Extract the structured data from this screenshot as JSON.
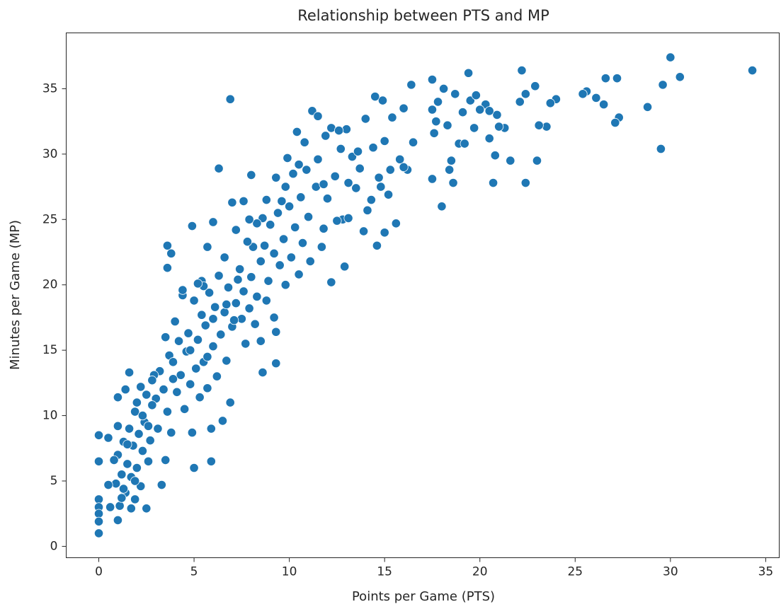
{
  "chart_data": {
    "type": "scatter",
    "title": "Relationship between PTS and MP",
    "x_label": "Points per Game (PTS)",
    "y_label": "Minutes per Game (MP)",
    "color": "#1f77b4",
    "xlim": [
      -1.71,
      35.71
    ],
    "ylim": [
      -0.87,
      39.27
    ],
    "xticks": [
      0,
      5,
      10,
      15,
      20,
      25,
      30,
      35
    ],
    "yticks": [
      0,
      5,
      10,
      15,
      20,
      25,
      30,
      35
    ],
    "grid": false,
    "x": [
      34.3,
      30.5,
      30.0,
      29.6,
      29.5,
      28.8,
      27.3,
      27.1,
      27.2,
      26.6,
      26.5,
      26.1,
      25.6,
      25.4,
      24.0,
      23.7,
      23.5,
      23.1,
      23.0,
      22.9,
      22.4,
      22.2,
      22.1,
      22.4,
      21.6,
      21.3,
      20.9,
      20.8,
      20.7,
      20.5,
      20.3,
      20.0,
      19.7,
      19.5,
      19.4,
      19.1,
      18.9,
      18.7,
      18.5,
      18.3,
      18.1,
      18.0,
      17.8,
      17.7,
      17.6,
      17.5,
      17.5,
      17.5,
      18.4,
      18.6,
      19.8,
      20.5,
      21.0,
      19.2,
      16.4,
      16.5,
      16.2,
      16.0,
      15.8,
      15.6,
      15.4,
      15.2,
      15.0,
      15.0,
      14.9,
      14.7,
      14.6,
      14.5,
      14.4,
      14.3,
      14.1,
      14.0,
      13.9,
      13.7,
      13.5,
      13.3,
      13.1,
      13.0,
      12.9,
      12.8,
      12.7,
      12.5,
      12.4,
      12.2,
      12.2,
      12.0,
      11.9,
      11.8,
      11.7,
      11.5,
      11.4,
      11.2,
      11.1,
      11.0,
      10.9,
      10.8,
      10.7,
      10.6,
      10.5,
      10.4,
      10.3,
      10.2,
      10.1,
      10.0,
      9.9,
      9.8,
      9.7,
      9.6,
      9.5,
      9.4,
      9.3,
      9.2,
      9.0,
      8.9,
      8.8,
      8.7,
      8.6,
      8.5,
      8.3,
      8.1,
      8.0,
      7.9,
      7.8,
      7.6,
      7.4,
      7.2,
      7.0,
      6.9,
      6.6,
      6.3,
      6.0,
      5.7,
      5.4,
      4.9,
      3.6,
      3.8,
      3.6,
      11.5,
      12.6,
      13.6,
      14.8,
      15.3,
      16.0,
      13.1,
      11.8,
      9.8,
      10.5,
      9.3,
      9.2,
      9.3,
      8.8,
      8.6,
      8.5,
      8.3,
      8.2,
      8.0,
      7.9,
      7.7,
      7.6,
      7.5,
      7.3,
      7.2,
      7.0,
      6.9,
      6.8,
      6.7,
      6.6,
      6.5,
      6.4,
      6.3,
      6.2,
      6.1,
      6.0,
      5.9,
      5.9,
      5.8,
      5.7,
      5.6,
      5.5,
      5.4,
      5.3,
      5.2,
      5.1,
      5.0,
      4.9,
      5.0,
      4.8,
      4.7,
      4.6,
      4.5,
      4.4,
      4.3,
      4.2,
      4.1,
      4.0,
      3.9,
      3.8,
      3.7,
      3.6,
      3.5,
      3.5,
      3.4,
      3.3,
      3.2,
      3.1,
      3.0,
      6.7,
      7.1,
      5.5,
      5.2,
      4.4,
      6.0,
      5.7,
      4.8,
      3.9,
      2.9,
      2.8,
      2.7,
      2.6,
      2.5,
      2.5,
      2.4,
      2.3,
      2.2,
      2.2,
      2.1,
      2.0,
      1.9,
      1.9,
      1.8,
      1.7,
      1.6,
      1.6,
      1.5,
      1.4,
      1.4,
      1.3,
      1.2,
      1.1,
      1.0,
      1.0,
      1.0,
      1.0,
      0.9,
      0.8,
      0.6,
      0.5,
      0.5,
      0.0,
      0.0,
      0.0,
      0.0,
      0.0,
      0.0,
      0.0,
      1.2,
      1.7,
      2.3,
      2.6,
      2.0,
      1.5,
      2.8,
      1.9,
      1.3
    ],
    "values": [
      36.4,
      35.9,
      37.4,
      35.3,
      30.4,
      33.6,
      32.8,
      32.4,
      35.8,
      35.8,
      33.8,
      34.3,
      34.8,
      34.6,
      34.2,
      33.9,
      32.1,
      32.2,
      29.5,
      35.2,
      34.6,
      36.4,
      34.0,
      27.8,
      29.5,
      32.0,
      33.0,
      29.9,
      27.8,
      31.2,
      33.8,
      33.4,
      32.0,
      34.1,
      36.2,
      33.2,
      30.8,
      34.6,
      29.5,
      32.2,
      35.0,
      26.0,
      34.0,
      32.5,
      31.6,
      35.7,
      28.1,
      33.4,
      28.8,
      27.8,
      34.5,
      33.3,
      32.1,
      30.8,
      35.3,
      30.9,
      28.8,
      33.5,
      29.6,
      24.7,
      32.8,
      26.9,
      31.0,
      24.0,
      34.1,
      28.2,
      23.0,
      34.4,
      30.5,
      26.5,
      25.7,
      32.7,
      24.1,
      28.9,
      27.4,
      29.8,
      27.8,
      31.9,
      21.4,
      25.0,
      30.4,
      24.9,
      28.3,
      32.0,
      20.2,
      26.6,
      31.4,
      24.3,
      22.9,
      29.6,
      27.5,
      33.3,
      21.8,
      25.2,
      28.8,
      30.9,
      23.2,
      26.7,
      20.8,
      31.7,
      24.4,
      28.5,
      22.1,
      26.0,
      29.7,
      20.0,
      23.5,
      26.4,
      21.5,
      25.5,
      28.2,
      22.4,
      24.6,
      20.3,
      26.5,
      23.0,
      25.1,
      21.8,
      24.7,
      22.9,
      28.4,
      25.0,
      23.3,
      26.4,
      21.2,
      24.2,
      26.3,
      34.2,
      22.1,
      28.9,
      24.8,
      22.9,
      20.3,
      24.5,
      23.0,
      22.4,
      21.3,
      32.9,
      31.8,
      30.2,
      27.5,
      28.8,
      29.0,
      25.1,
      27.7,
      27.5,
      29.2,
      16.4,
      17.5,
      14.0,
      18.8,
      13.3,
      15.7,
      19.1,
      17.0,
      20.6,
      18.2,
      15.5,
      19.5,
      17.4,
      20.4,
      18.6,
      16.8,
      11.0,
      19.8,
      14.2,
      17.9,
      9.6,
      16.2,
      20.7,
      13.0,
      18.3,
      15.3,
      9.0,
      6.5,
      19.4,
      12.1,
      16.9,
      14.1,
      17.7,
      11.4,
      15.8,
      13.6,
      18.8,
      8.7,
      6.0,
      12.4,
      16.3,
      14.9,
      10.5,
      19.2,
      13.1,
      15.7,
      11.8,
      17.2,
      12.8,
      8.7,
      14.6,
      10.3,
      16.0,
      6.6,
      12.0,
      4.7,
      13.4,
      9.0,
      11.3,
      18.5,
      17.3,
      19.9,
      20.1,
      19.6,
      17.4,
      14.5,
      15.0,
      14.1,
      13.1,
      10.8,
      8.1,
      6.5,
      11.6,
      2.9,
      9.5,
      7.3,
      4.6,
      12.2,
      8.6,
      6.0,
      10.3,
      3.6,
      7.7,
      5.3,
      13.3,
      9.0,
      6.3,
      4.1,
      12.0,
      8.0,
      5.5,
      3.1,
      11.4,
      9.2,
      7.0,
      2.0,
      4.8,
      6.6,
      3.0,
      8.3,
      4.7,
      8.5,
      6.5,
      3.6,
      3.0,
      2.5,
      1.9,
      1.0,
      3.7,
      2.9,
      10.0,
      9.2,
      11.0,
      7.8,
      12.7,
      5.0,
      4.4
    ]
  }
}
